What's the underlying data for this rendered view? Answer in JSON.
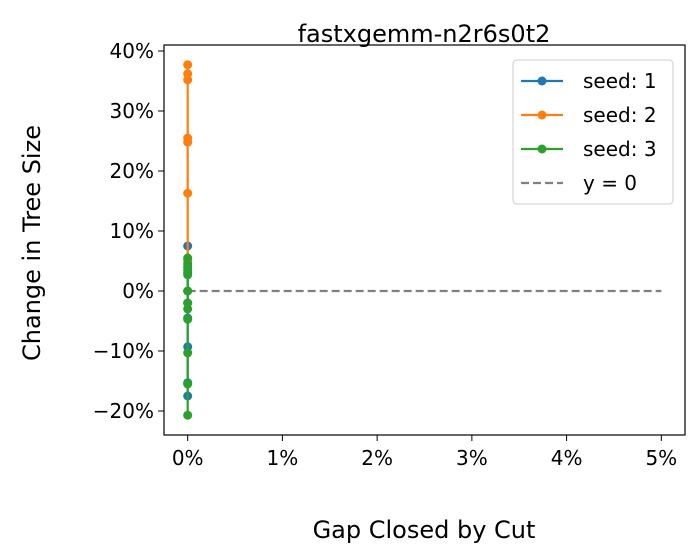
{
  "chart_data": {
    "type": "line",
    "title": "fastxgemm-n2r6s0t2",
    "xlabel": "Gap Closed by Cut",
    "ylabel": "Change in Tree Size",
    "xlim": [
      -0.0025,
      0.0525
    ],
    "ylim": [
      -0.24,
      0.41
    ],
    "x_ticks": [
      0,
      0.01,
      0.02,
      0.03,
      0.04,
      0.05
    ],
    "x_tick_labels": [
      "0%",
      "1%",
      "2%",
      "3%",
      "4%",
      "5%"
    ],
    "y_ticks": [
      -0.2,
      -0.1,
      0,
      0.1,
      0.2,
      0.3,
      0.4
    ],
    "y_tick_labels": [
      "−20%",
      "−10%",
      "0%",
      "10%",
      "20%",
      "30%",
      "40%"
    ],
    "grid": false,
    "legend_position": "top-right",
    "series": [
      {
        "name": "seed: 1",
        "color": "#1f77b4",
        "x": [
          0,
          0,
          0,
          0,
          0,
          0,
          0,
          0,
          0,
          0
        ],
        "y": [
          0.075,
          0.052,
          0.04,
          0.03,
          0.0,
          -0.02,
          -0.045,
          -0.093,
          -0.153,
          -0.175
        ]
      },
      {
        "name": "seed: 2",
        "color": "#ff7f0e",
        "x": [
          0,
          0,
          0,
          0,
          0,
          0,
          0
        ],
        "y": [
          0.377,
          0.362,
          0.352,
          0.255,
          0.248,
          0.163,
          0.05
        ]
      },
      {
        "name": "seed: 3",
        "color": "#2ca02c",
        "x": [
          0,
          0,
          0,
          0,
          0,
          0,
          0,
          0,
          0,
          0,
          0
        ],
        "y": [
          0.055,
          0.045,
          0.035,
          0.027,
          0.0,
          -0.02,
          -0.03,
          -0.047,
          -0.103,
          -0.155,
          -0.207
        ]
      }
    ],
    "reference_line": {
      "name": "y = 0",
      "value": 0,
      "x_range": [
        0,
        0.05
      ],
      "color": "#808080",
      "style": "dashed"
    }
  }
}
